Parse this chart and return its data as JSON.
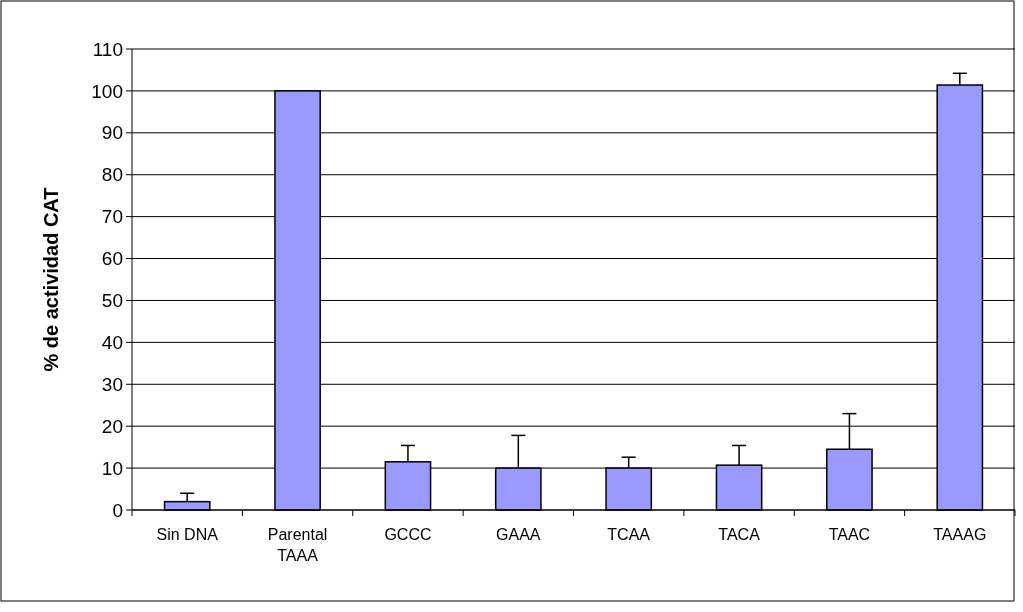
{
  "chart_data": {
    "type": "bar",
    "ylabel": "% de actividad CAT",
    "categories": [
      "Sin DNA",
      "Parental\nTAAA",
      "GCCC",
      "GAAA",
      "TCAA",
      "TACA",
      "TAAC",
      "TAAAG"
    ],
    "values": [
      2,
      100,
      11.5,
      10,
      10,
      10.7,
      14.5,
      101.4
    ],
    "errors": [
      [
        2,
        4
      ],
      null,
      [
        11.5,
        15.4
      ],
      [
        10,
        17.8
      ],
      [
        10,
        12.6
      ],
      [
        10.7,
        15.4
      ],
      [
        14.5,
        23
      ],
      [
        101.4,
        104.2
      ]
    ],
    "color": "#9999ff",
    "ylim": [
      0,
      110
    ],
    "yticks": [
      0,
      10,
      20,
      30,
      40,
      50,
      60,
      70,
      80,
      90,
      100,
      110
    ],
    "grid": "y"
  }
}
